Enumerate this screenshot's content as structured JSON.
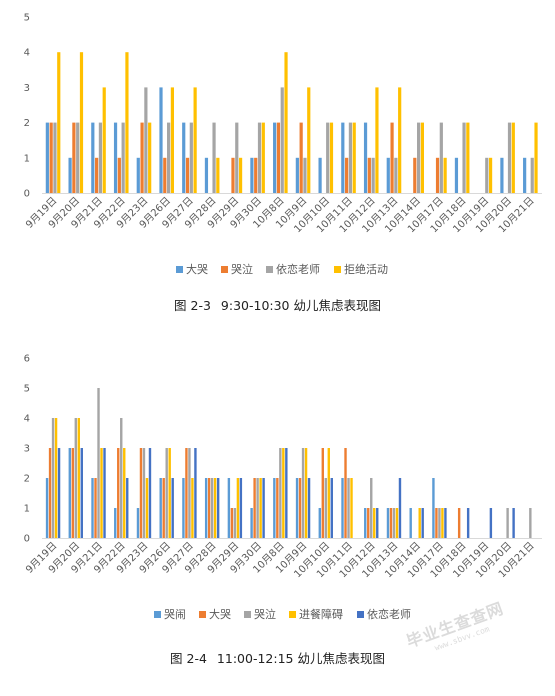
{
  "chart_data": [
    {
      "type": "bar",
      "figure_num": "图 2-3",
      "caption": "9:30-10:30 幼儿焦虑表现图",
      "categories": [
        "9月19日",
        "9月20日",
        "9月21日",
        "9月22日",
        "9月23日",
        "9月26日",
        "9月27日",
        "9月28日",
        "9月29日",
        "9月30日",
        "10月8日",
        "10月9日",
        "10月10日",
        "10月11日",
        "10月12日",
        "10月13日",
        "10月14日",
        "10月17日",
        "10月18日",
        "10月19日",
        "10月20日",
        "10月21日"
      ],
      "series": [
        {
          "name": "大哭",
          "color": "#5B9BD5",
          "values": [
            2,
            1,
            2,
            2,
            1,
            3,
            2,
            1,
            0,
            1,
            2,
            1,
            1,
            2,
            2,
            1,
            0,
            0,
            1,
            0,
            1,
            1
          ]
        },
        {
          "name": "哭泣",
          "color": "#ED7D31",
          "values": [
            2,
            2,
            1,
            1,
            2,
            1,
            1,
            0,
            1,
            1,
            2,
            2,
            0,
            1,
            1,
            2,
            1,
            1,
            0,
            0,
            0,
            0
          ]
        },
        {
          "name": "依恋老师",
          "color": "#A5A5A5",
          "values": [
            2,
            2,
            2,
            2,
            3,
            2,
            2,
            2,
            2,
            2,
            3,
            1,
            2,
            2,
            1,
            1,
            2,
            2,
            2,
            1,
            2,
            1
          ]
        },
        {
          "name": "拒绝活动",
          "color": "#FFC000",
          "values": [
            4,
            4,
            3,
            4,
            2,
            3,
            3,
            1,
            1,
            2,
            4,
            3,
            2,
            2,
            3,
            3,
            2,
            1,
            2,
            1,
            2,
            2
          ]
        }
      ],
      "ylim": [
        0,
        5
      ],
      "yticks": [
        0,
        1,
        2,
        3,
        4,
        5
      ],
      "grid": false,
      "legend": "bottom"
    },
    {
      "type": "bar",
      "figure_num": "图 2-4",
      "caption": "11:00-12:15 幼儿焦虑表现图",
      "categories": [
        "9月19日",
        "9月20日",
        "9月21日",
        "9月22日",
        "9月23日",
        "9月26日",
        "9月27日",
        "9月28日",
        "9月29日",
        "9月30日",
        "10月8日",
        "10月9日",
        "10月10日",
        "10月11日",
        "10月12日",
        "10月13日",
        "10月14日",
        "10月17日",
        "10月18日",
        "10月19日",
        "10月20日",
        "10月21日"
      ],
      "series": [
        {
          "name": "哭闹",
          "color": "#5B9BD5",
          "values": [
            2,
            3,
            2,
            1,
            1,
            2,
            2,
            2,
            2,
            1,
            2,
            2,
            1,
            2,
            1,
            1,
            1,
            2,
            0,
            0,
            0,
            0
          ]
        },
        {
          "name": "大哭",
          "color": "#ED7D31",
          "values": [
            3,
            3,
            2,
            3,
            3,
            2,
            3,
            2,
            1,
            2,
            2,
            2,
            3,
            3,
            1,
            1,
            0,
            1,
            1,
            0,
            0,
            0
          ]
        },
        {
          "name": "哭泣",
          "color": "#A5A5A5",
          "values": [
            4,
            4,
            5,
            4,
            3,
            3,
            3,
            2,
            1,
            2,
            3,
            3,
            2,
            2,
            2,
            1,
            0,
            1,
            0,
            0,
            1,
            1
          ]
        },
        {
          "name": "进餐障碍",
          "color": "#FFC000",
          "values": [
            4,
            4,
            3,
            3,
            2,
            3,
            2,
            2,
            2,
            2,
            3,
            3,
            3,
            2,
            1,
            1,
            1,
            1,
            0,
            0,
            0,
            0
          ]
        },
        {
          "name": "依恋老师",
          "color": "#4472C4",
          "values": [
            3,
            3,
            3,
            2,
            3,
            2,
            3,
            2,
            2,
            2,
            3,
            2,
            2,
            0,
            1,
            2,
            1,
            1,
            1,
            1,
            1,
            0
          ]
        }
      ],
      "ylim": [
        0,
        6
      ],
      "yticks": [
        0,
        1,
        2,
        3,
        4,
        5,
        6
      ],
      "grid": false,
      "legend": "bottom"
    }
  ],
  "watermark": {
    "main": "毕业生查查网",
    "sub": "www.sbvv.com"
  }
}
